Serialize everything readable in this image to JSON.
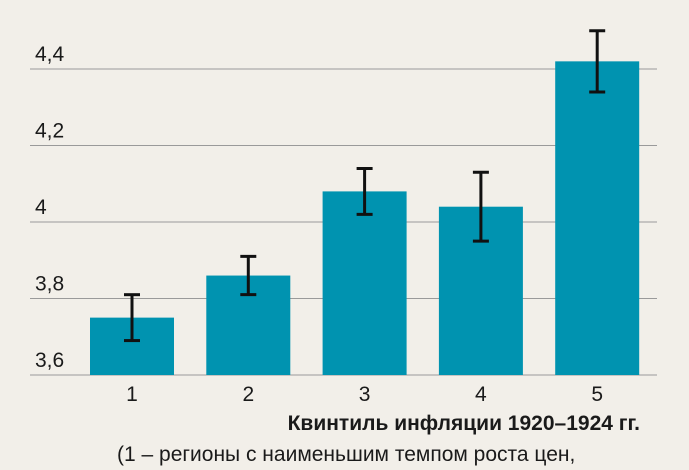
{
  "chart_data": {
    "type": "bar",
    "categories": [
      "1",
      "2",
      "3",
      "4",
      "5"
    ],
    "values": [
      3.75,
      3.86,
      4.08,
      4.04,
      4.42
    ],
    "errors": [
      0.06,
      0.05,
      0.06,
      0.09,
      0.08
    ],
    "color": "#0093b0",
    "x_label": "Квинтиль инфляции 1920–1924 гг.",
    "note": "(1 – регионы с наименьшим темпом роста цен,",
    "ylim": [
      3.6,
      4.55
    ],
    "yticks": [
      {
        "value": 3.6,
        "label": "3,6"
      },
      {
        "value": 3.8,
        "label": "3,8"
      },
      4,
      {
        "value": 4.2,
        "label": "4,2"
      },
      {
        "value": 4.4,
        "label": "4,4"
      }
    ],
    "grid": true
  }
}
